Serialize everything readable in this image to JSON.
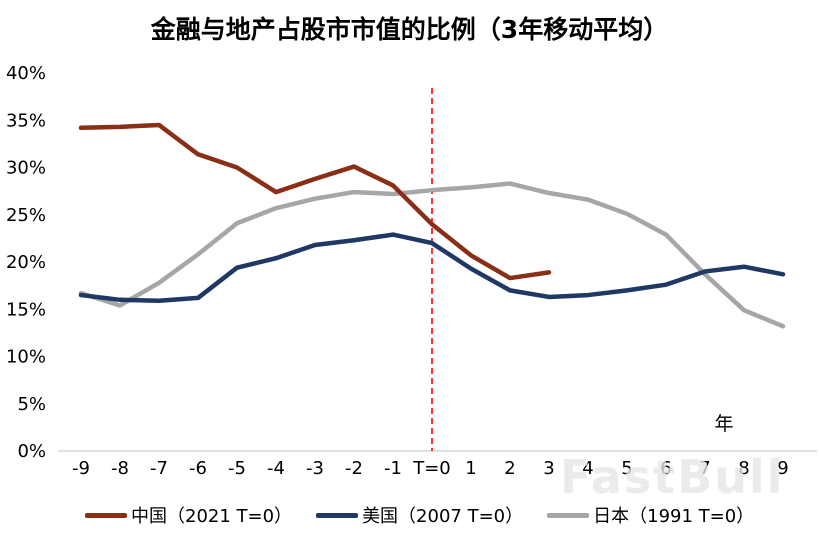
{
  "chart_data": {
    "type": "line",
    "title": "金融与地产占股市市值的比例（3年移动平均）",
    "grid": false,
    "legend_position": "bottom",
    "x_axis": {
      "unit": "年",
      "tick_values": [
        -9,
        -8,
        -7,
        -6,
        -5,
        -4,
        -3,
        -2,
        -1,
        0,
        1,
        2,
        3,
        4,
        5,
        6,
        7,
        8,
        9
      ],
      "tick_labels": [
        "-9",
        "-8",
        "-7",
        "-6",
        "-5",
        "-4",
        "-3",
        "-2",
        "-1",
        "T=0",
        "1",
        "2",
        "3",
        "4",
        "5",
        "6",
        "7",
        "8",
        "9"
      ]
    },
    "y_axis": {
      "min": 0,
      "max": 40,
      "step": 5,
      "tick_labels": [
        "0%",
        "5%",
        "10%",
        "15%",
        "20%",
        "25%",
        "30%",
        "35%",
        "40%"
      ]
    },
    "reference_line": {
      "x": 0,
      "style": "dashed",
      "color": "#FF0000"
    },
    "axis_color": "#D9D9D9",
    "series": [
      {
        "id": "china",
        "name": "中国（2021 T=0）",
        "color": "#8B2E16",
        "x_start": -9,
        "values": [
          34.2,
          34.3,
          34.5,
          31.4,
          30.0,
          27.4,
          28.8,
          30.1,
          28.1,
          24.0,
          20.7,
          18.3,
          18.9
        ]
      },
      {
        "id": "us",
        "name": "美国（2007 T=0）",
        "color": "#1F3864",
        "x_start": -9,
        "values": [
          16.5,
          16.0,
          15.9,
          16.2,
          19.4,
          20.4,
          21.8,
          22.3,
          22.9,
          22.0,
          19.3,
          17.0,
          16.3,
          16.5,
          17.0,
          17.6,
          19.0,
          19.5,
          18.7
        ]
      },
      {
        "id": "japan",
        "name": "日本（1991 T=0）",
        "color": "#A6A6A6",
        "x_start": -9,
        "values": [
          16.7,
          15.4,
          17.8,
          20.8,
          24.1,
          25.7,
          26.7,
          27.4,
          27.2,
          27.6,
          27.9,
          28.3,
          27.3,
          26.6,
          25.1,
          22.9,
          18.7,
          14.9,
          13.2
        ]
      }
    ]
  },
  "watermark": {
    "text": "FastBull"
  }
}
